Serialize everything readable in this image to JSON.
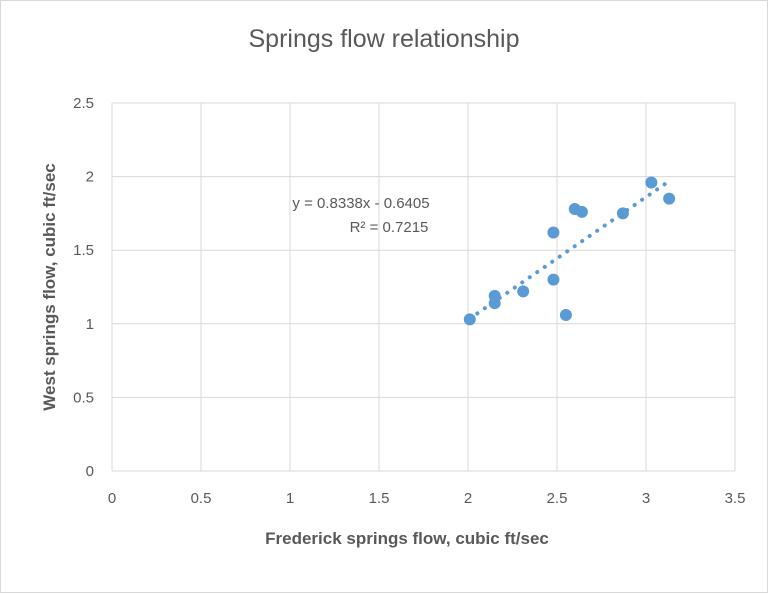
{
  "chart_data": {
    "type": "scatter",
    "title": "Springs flow relationship",
    "xlabel": "Frederick springs flow, cubic ft/sec",
    "ylabel": "West springs flow, cubic ft/sec",
    "xlim": [
      0,
      3.5
    ],
    "ylim": [
      0,
      2.5
    ],
    "x_ticks": [
      "0",
      "0.5",
      "1",
      "1.5",
      "2",
      "2.5",
      "3",
      "3.5"
    ],
    "y_ticks": [
      "0",
      "0.5",
      "1",
      "1.5",
      "2",
      "2.5"
    ],
    "grid": true,
    "legend": "none",
    "colors": {
      "marker": "#5b9bd5",
      "grid": "#d9d9d9",
      "text": "#595959"
    },
    "series": [
      {
        "x": [
          2.01,
          2.15,
          2.15,
          2.31,
          2.48,
          2.48,
          2.55,
          2.6,
          2.64,
          2.87,
          3.03,
          3.13
        ],
        "y": [
          1.03,
          1.19,
          1.14,
          1.22,
          1.62,
          1.3,
          1.06,
          1.78,
          1.76,
          1.75,
          1.96,
          1.85
        ]
      }
    ],
    "trendline": {
      "type": "linear",
      "slope": 0.8338,
      "intercept": -0.6405,
      "x_range": [
        2.01,
        3.13
      ],
      "equation_label": "y = 0.8338x - 0.6405",
      "r2_label": "R² = 0.7215"
    }
  }
}
